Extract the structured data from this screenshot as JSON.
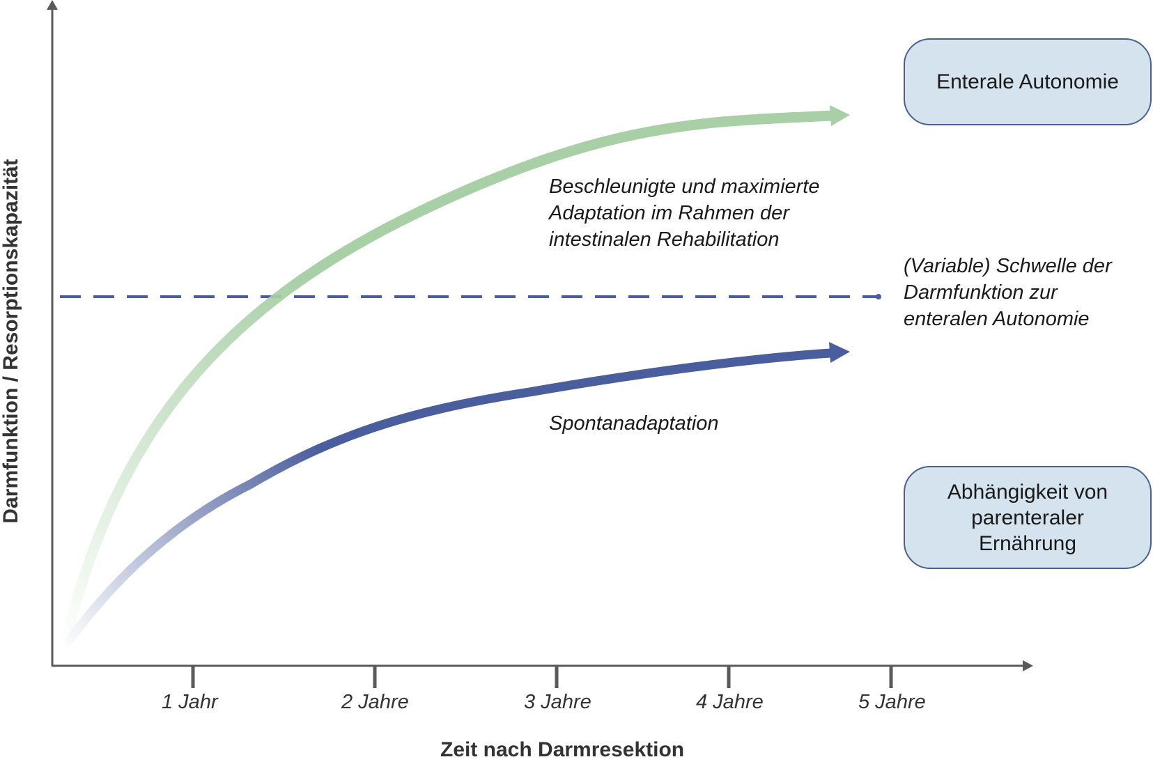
{
  "x_axis": {
    "title": "Zeit nach Darmresektion",
    "ticks": [
      "1 Jahr",
      "2 Jahre",
      "3 Jahre",
      "4 Jahre",
      "5 Jahre"
    ]
  },
  "y_axis": {
    "title": "Darmfunktion / Resorptionskapazität"
  },
  "curves": {
    "rehab": {
      "label": "Beschleunigte und maximierte\nAdaptation im Rahmen der\nintestinalen Rehabilitation",
      "color": "#a8cfa6"
    },
    "spontaneous": {
      "label": "Spontanadaptation",
      "color": "#4a5d9c"
    }
  },
  "threshold": {
    "label": "(Variable) Schwelle der\nDarmfunktion zur\nenteralen Autonomie",
    "color": "#4a5d9c"
  },
  "boxes": {
    "autonomy": "Enterale Autonomie",
    "dependency": "Abhängigkeit von\nparenteraler\nErnährung",
    "fill": "#d4e3ee",
    "border": "#4a5f8d"
  },
  "axis_color": "#5a5a5a"
}
